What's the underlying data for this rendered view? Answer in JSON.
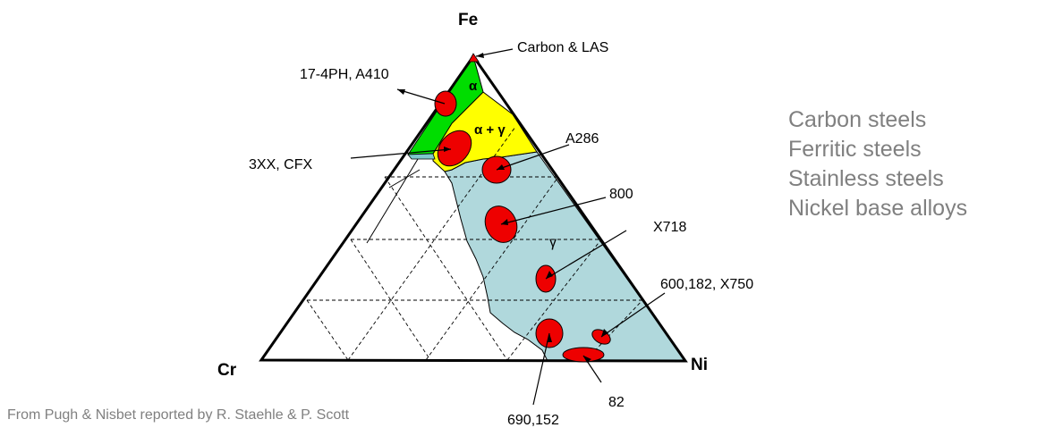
{
  "vertices": {
    "top": "Fe",
    "left": "Cr",
    "right": "Ni"
  },
  "phases": {
    "alpha": "α",
    "alpha_gamma": "α + γ",
    "gamma": "γ"
  },
  "alloys": {
    "carbon_las": "Carbon & LAS",
    "a17_4ph": "17-4PH, A410",
    "xx3_cfx": "3XX, CFX",
    "a286": "A286",
    "a800": "800",
    "x718": "X718",
    "a600": "600,182, X750",
    "a82": "82",
    "a690": "690,152"
  },
  "legend": [
    "Carbon steels",
    "Ferritic steels",
    "Stainless steels",
    "Nickel base alloys"
  ],
  "source": "From Pugh & Nisbet reported by R. Staehle & P. Scott",
  "colors": {
    "alpha_region": "#00dd00",
    "alpha_gamma_region": "#ffff00",
    "gamma_region": "#b0d8dc",
    "alloy_marker": "#ee0000",
    "legend_text": "#808080"
  }
}
